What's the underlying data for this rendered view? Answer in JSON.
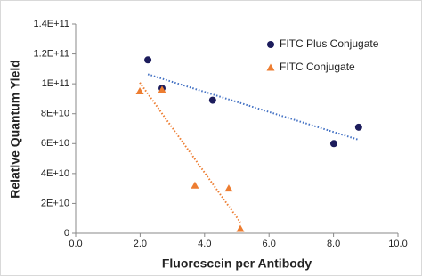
{
  "chart_data": {
    "type": "scatter",
    "xlabel": "Fluorescein per Antibody",
    "ylabel": "Relative Quantum Yield",
    "xlim": [
      0,
      10
    ],
    "ylim": [
      0,
      140000000000
    ],
    "xticks": [
      {
        "value": 0,
        "label": "0.0"
      },
      {
        "value": 2,
        "label": "2.0"
      },
      {
        "value": 4,
        "label": "4.0"
      },
      {
        "value": 6,
        "label": "6.0"
      },
      {
        "value": 8,
        "label": "8.0"
      },
      {
        "value": 10,
        "label": "10.0"
      }
    ],
    "yticks": [
      0,
      {
        "value": 20000000000,
        "label": "2E+10"
      },
      {
        "value": 40000000000,
        "label": "4E+10"
      },
      {
        "value": 60000000000,
        "label": "6E+10"
      },
      {
        "value": 80000000000,
        "label": "8E+10"
      },
      {
        "value": 100000000000,
        "label": "1E+11"
      },
      {
        "value": 120000000000,
        "label": "1.2E+11"
      },
      {
        "value": 140000000000,
        "label": "1.4E+11"
      }
    ],
    "legend": "upper right",
    "trendline": true,
    "series": [
      {
        "name": "FITC Plus Conjugate",
        "color": "#1c1c5c",
        "marker": "circle",
        "trend_color": "#4472c4",
        "x": [
          2.24,
          2.68,
          4.25,
          8.01,
          8.78
        ],
        "values": [
          116000000000,
          97000000000,
          89000000000,
          60000000000,
          71000000000
        ]
      },
      {
        "name": "FITC Conjugate",
        "color": "#ed7d31",
        "marker": "triangle",
        "trend_color": "#ed7d31",
        "x": [
          1.99,
          2.68,
          3.7,
          4.75,
          5.11
        ],
        "values": [
          95000000000,
          96000000000,
          32000000000,
          30000000000,
          3000000000
        ]
      }
    ]
  }
}
